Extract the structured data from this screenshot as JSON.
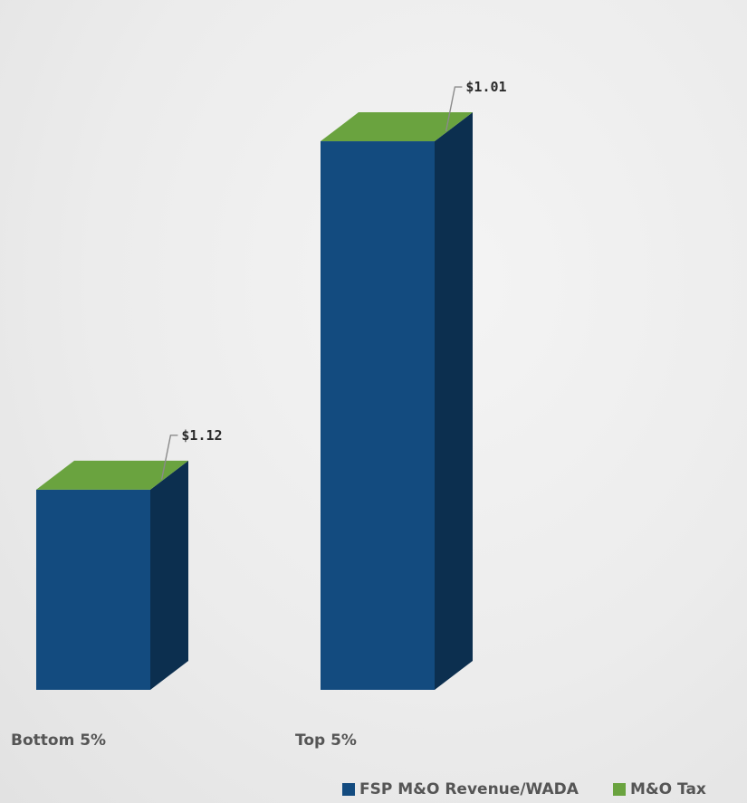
{
  "chart_data": {
    "type": "bar",
    "stacked": true,
    "three_d": true,
    "title": "",
    "xlabel": "",
    "ylabel": "",
    "ylim": [
      0,
      7.8
    ],
    "grid": false,
    "legend_position": "bottom-right",
    "categories": [
      "Bottom 5%",
      "Top 5%"
    ],
    "series": [
      {
        "name": "FSP M&O Revenue/WADA",
        "color": "#134b7f",
        "values": [
          2.5,
          6.85
        ]
      },
      {
        "name": "M&O Tax",
        "color": "#6aa33f",
        "values": [
          1.12,
          1.01
        ]
      }
    ],
    "data_labels": [
      "$1.12",
      "$1.01"
    ]
  }
}
